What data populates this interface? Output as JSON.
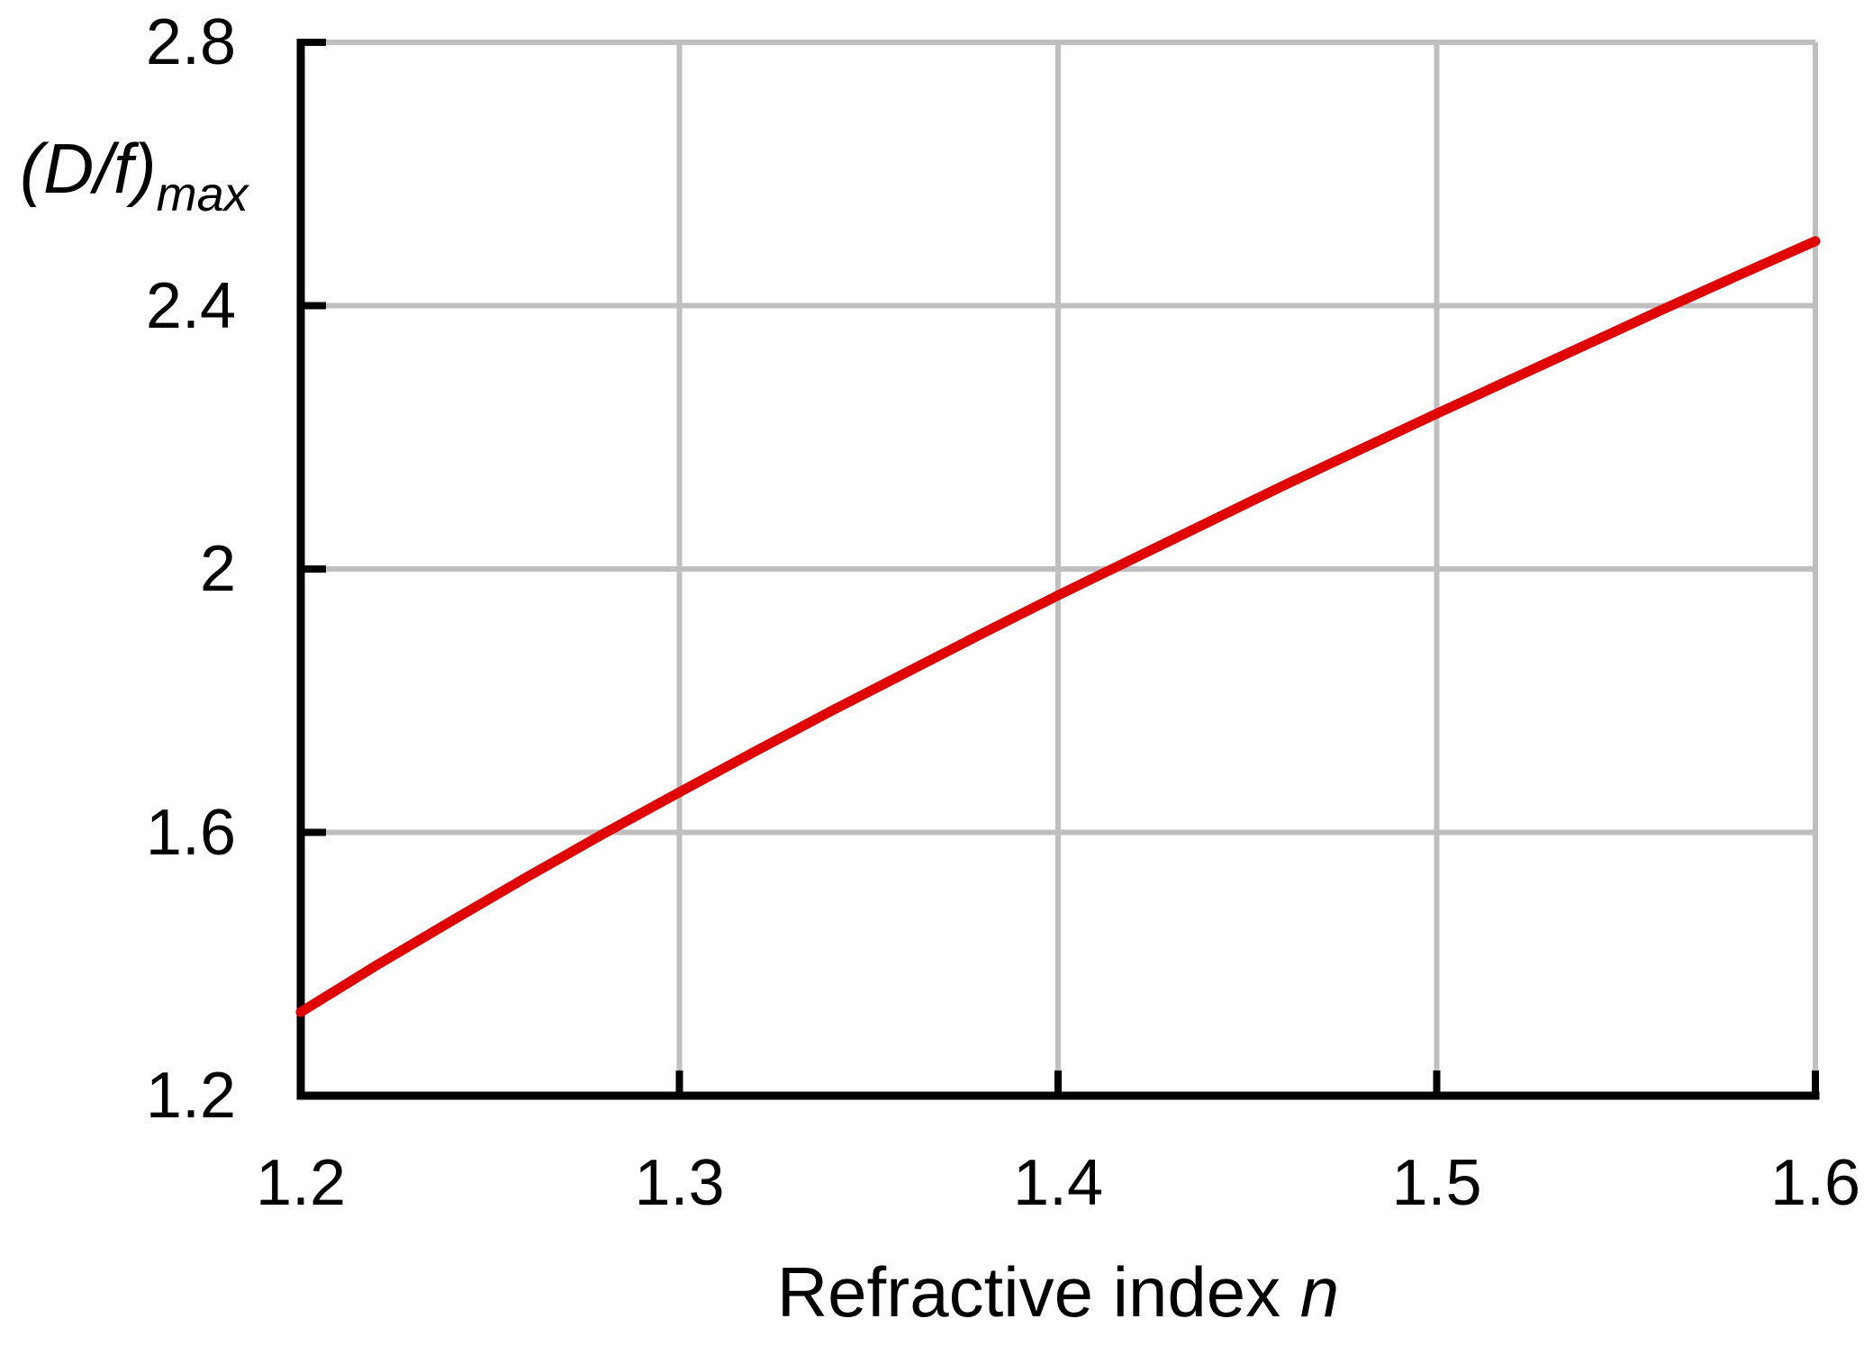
{
  "chart_data": {
    "type": "line",
    "title": "",
    "xlabel": "Refractive index n",
    "xlabel_main": "Refractive index ",
    "xlabel_symbol": "n",
    "ylabel": "(D/f)max",
    "ylabel_main": "(D/f)",
    "ylabel_sub": "max",
    "xlim": [
      1.2,
      1.6
    ],
    "ylim": [
      1.2,
      2.8
    ],
    "grid": true,
    "legend": false,
    "axis_color": "#000000",
    "grid_color": "#bfbfbf",
    "x_ticks": {
      "values": [
        1.2,
        1.3,
        1.4,
        1.5,
        1.6
      ],
      "labels": [
        "1.2",
        "1.3",
        "1.4",
        "1.5",
        "1.6"
      ]
    },
    "y_ticks": {
      "values": [
        1.2,
        1.6,
        2,
        2.4,
        2.8
      ],
      "labels": [
        "1.2",
        "1.6",
        "2",
        "2.4",
        "2.8"
      ]
    },
    "series": [
      {
        "name": "(D/f)max",
        "color": "#e00000",
        "x": [
          1.2,
          1.22,
          1.24,
          1.26,
          1.28,
          1.3,
          1.32,
          1.34,
          1.36,
          1.38,
          1.4,
          1.42,
          1.44,
          1.46,
          1.48,
          1.5,
          1.52,
          1.54,
          1.56,
          1.58,
          1.6
        ],
        "y": [
          1.327,
          1.398,
          1.466,
          1.533,
          1.598,
          1.661,
          1.723,
          1.784,
          1.843,
          1.902,
          1.96,
          2.016,
          2.072,
          2.128,
          2.182,
          2.236,
          2.289,
          2.342,
          2.395,
          2.447,
          2.498
        ]
      }
    ]
  }
}
